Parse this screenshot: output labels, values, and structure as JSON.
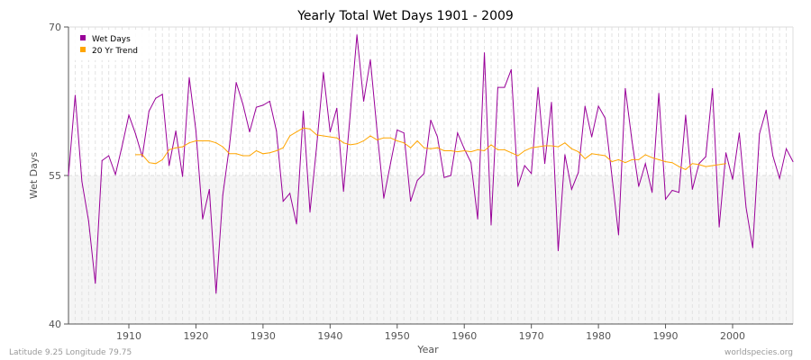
{
  "chart_data": {
    "type": "line",
    "title": "Yearly Total Wet Days 1901 - 2009",
    "xlabel": "Year",
    "ylabel": "Wet Days",
    "xlim": [
      1901,
      2009
    ],
    "ylim": [
      40,
      70
    ],
    "yticks": [
      40,
      55,
      70
    ],
    "xticks": [
      1910,
      1920,
      1930,
      1940,
      1950,
      1960,
      1970,
      1980,
      1990,
      2000
    ],
    "grid": true,
    "legend_position": "top-left",
    "series": [
      {
        "name": "Wet Days",
        "color": "#990099",
        "x_start": 1901,
        "values": [
          55.0,
          63.1,
          54.4,
          50.4,
          44.1,
          56.5,
          57.0,
          55.1,
          58.0,
          61.1,
          59.2,
          56.9,
          61.5,
          62.8,
          63.2,
          56.0,
          59.5,
          54.9,
          64.9,
          59.5,
          50.6,
          53.6,
          43.1,
          53.0,
          58.0,
          64.4,
          62.2,
          59.4,
          61.9,
          62.1,
          62.5,
          59.5,
          52.4,
          53.2,
          50.1,
          61.5,
          51.3,
          58.0,
          65.4,
          59.4,
          61.8,
          53.4,
          61.2,
          69.2,
          62.5,
          66.7,
          59.5,
          52.7,
          56.2,
          59.6,
          59.3,
          52.4,
          54.5,
          55.2,
          60.6,
          58.9,
          54.8,
          55.0,
          59.3,
          57.7,
          56.3,
          50.6,
          67.4,
          50.0,
          63.9,
          63.9,
          65.7,
          53.9,
          56.0,
          55.2,
          63.9,
          56.2,
          62.4,
          47.4,
          57.1,
          53.6,
          55.3,
          62.0,
          58.9,
          62.0,
          60.8,
          55.0,
          49.0,
          63.8,
          58.5,
          53.9,
          56.2,
          53.3,
          63.3,
          52.6,
          53.5,
          53.3,
          61.1,
          53.6,
          56.2,
          56.9,
          63.8,
          49.8,
          57.3,
          54.6,
          59.3,
          51.8,
          47.7,
          59.2,
          61.6,
          57.0,
          54.7,
          57.7,
          56.4
        ]
      },
      {
        "name": "20 Yr Trend",
        "color": "#ffa500",
        "x_start": 1911,
        "values": [
          57.1,
          57.1,
          56.3,
          56.2,
          56.6,
          57.6,
          57.8,
          57.9,
          58.3,
          58.5,
          58.5,
          58.5,
          58.3,
          57.9,
          57.2,
          57.2,
          57.0,
          57.0,
          57.5,
          57.2,
          57.3,
          57.5,
          57.8,
          59.0,
          59.4,
          59.8,
          59.7,
          59.1,
          59.0,
          58.9,
          58.8,
          58.3,
          58.1,
          58.2,
          58.5,
          59.0,
          58.6,
          58.8,
          58.8,
          58.5,
          58.3,
          57.8,
          58.5,
          57.8,
          57.7,
          57.8,
          57.5,
          57.5,
          57.4,
          57.5,
          57.4,
          57.6,
          57.5,
          58.1,
          57.6,
          57.6,
          57.3,
          57.0,
          57.5,
          57.8,
          57.9,
          58.0,
          58.0,
          57.9,
          58.3,
          57.7,
          57.4,
          56.7,
          57.2,
          57.1,
          57.0,
          56.4,
          56.6,
          56.3,
          56.6,
          56.6,
          57.1,
          56.8,
          56.6,
          56.4,
          56.3,
          55.9,
          55.6,
          56.2,
          56.1,
          55.9,
          56.0,
          56.1,
          56.2
        ]
      }
    ]
  },
  "footer": {
    "location": "Latitude 9.25 Longitude 79.75",
    "source": "worldspecies.org"
  }
}
